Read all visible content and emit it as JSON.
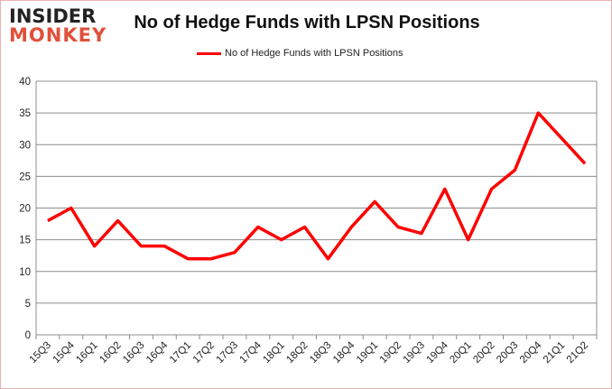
{
  "logo": {
    "line1": "INSIDER",
    "line2": "MONKEY"
  },
  "chart_data": {
    "type": "line",
    "title": "No of Hedge Funds with LPSN Positions",
    "xlabel": "",
    "ylabel": "",
    "categories": [
      "15Q3",
      "15Q4",
      "16Q1",
      "16Q2",
      "16Q3",
      "16Q4",
      "17Q1",
      "17Q2",
      "17Q3",
      "17Q4",
      "18Q1",
      "18Q2",
      "18Q3",
      "18Q4",
      "19Q1",
      "19Q2",
      "19Q3",
      "19Q4",
      "20Q1",
      "20Q2",
      "20Q3",
      "20Q4",
      "21Q1",
      "21Q2"
    ],
    "series": [
      {
        "name": "No of Hedge Funds with LPSN Positions",
        "color": "#ff0000",
        "values": [
          18,
          20,
          14,
          18,
          14,
          14,
          12,
          12,
          13,
          17,
          15,
          17,
          12,
          17,
          21,
          17,
          16,
          23,
          15,
          23,
          26,
          35,
          31,
          27
        ]
      }
    ],
    "ylim": [
      0,
      40
    ],
    "yticks": [
      0,
      5,
      10,
      15,
      20,
      25,
      30,
      35,
      40
    ],
    "grid": true,
    "legend": "top-center"
  }
}
